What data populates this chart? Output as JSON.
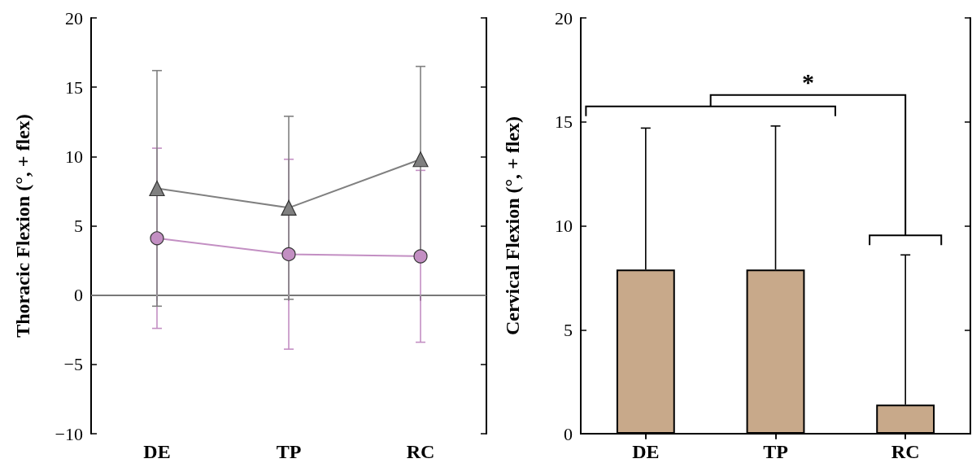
{
  "chart_data": [
    {
      "type": "line",
      "ylabel": "Thoracic Flexion (°, + flex)",
      "categories": [
        "DE",
        "TP",
        "RC"
      ],
      "series": [
        {
          "color": "#c38fc3",
          "marker": "circle",
          "values": [
            4.1,
            2.95,
            2.8
          ],
          "errors": [
            6.5,
            6.85,
            6.2
          ]
        },
        {
          "color": "#808080",
          "marker": "triangle",
          "values": [
            7.7,
            6.3,
            9.8
          ],
          "errors": [
            8.5,
            6.6,
            6.7
          ]
        }
      ],
      "ylim": [
        -10,
        20
      ],
      "yticks": [
        -10,
        -5,
        0,
        5,
        10,
        15,
        20
      ],
      "ref_lines": [
        {
          "axis": "y",
          "value": 0,
          "color": "#a0a0a0"
        }
      ]
    },
    {
      "type": "bar",
      "ylabel": "Cervical Flexion (°, + flex)",
      "categories": [
        "DE",
        "TP",
        "RC"
      ],
      "values": [
        7.9,
        7.9,
        1.4
      ],
      "color": "#c8a98a",
      "errors": [
        [
          7.9,
          14.7
        ],
        [
          7.9,
          14.8
        ],
        [
          1.4,
          8.6
        ]
      ],
      "ylim": [
        0,
        20
      ],
      "yticks": [
        0,
        5,
        10,
        15,
        20
      ],
      "annotations": [
        "*"
      ]
    }
  ]
}
